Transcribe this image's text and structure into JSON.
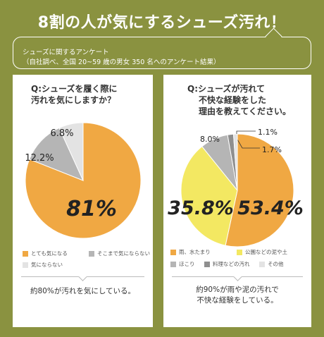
{
  "headline": "8割の人が気にするシューズ汚れ！",
  "survey": {
    "line1": "シューズに関するアンケート",
    "line2": "（自社調べ、全国 20~59 歳の男女 350 名へのアンケート結果）"
  },
  "colors": {
    "background": "#8a9240",
    "orange": "#f0a843",
    "yellow": "#f3e862",
    "gray": "#b5b5b5",
    "darkgray": "#8f8f8f",
    "lightgray": "#e3e3e3",
    "white": "#ffffff"
  },
  "chart_data": [
    {
      "type": "pie",
      "question_lines": [
        "Q:シューズを履く際に",
        "汚れを気にしますか？"
      ],
      "slices": [
        {
          "label": "とても気になる",
          "value": 81,
          "display": "81%",
          "color": "#f0a843"
        },
        {
          "label": "そこまで気にならない",
          "value": 12.2,
          "display": "12.2%",
          "color": "#b5b5b5"
        },
        {
          "label": "気にならない",
          "value": 6.8,
          "display": "6.8%",
          "color": "#e3e3e3"
        }
      ],
      "conclusion_lines": [
        "約80%が汚れを気にしている。"
      ]
    },
    {
      "type": "pie",
      "question_lines": [
        "Q:シューズが汚れて",
        "不快な経験をした",
        "理由を教えてください。"
      ],
      "slices": [
        {
          "label": "雨、水たまり",
          "value": 53.4,
          "display": "53.4%",
          "color": "#f0a843"
        },
        {
          "label": "公園などの泥や土",
          "value": 35.8,
          "display": "35.8%",
          "color": "#f3e862"
        },
        {
          "label": "ほこり",
          "value": 8.0,
          "display": "8.0%",
          "color": "#b5b5b5"
        },
        {
          "label": "料理などの汚れ",
          "value": 1.7,
          "display": "1.7%",
          "color": "#8f8f8f"
        },
        {
          "label": "その他",
          "value": 1.1,
          "display": "1.1%",
          "color": "#e3e3e3"
        }
      ],
      "conclusion_lines": [
        "約90%が雨や泥の汚れで",
        "不快な経験をしている。"
      ]
    }
  ]
}
